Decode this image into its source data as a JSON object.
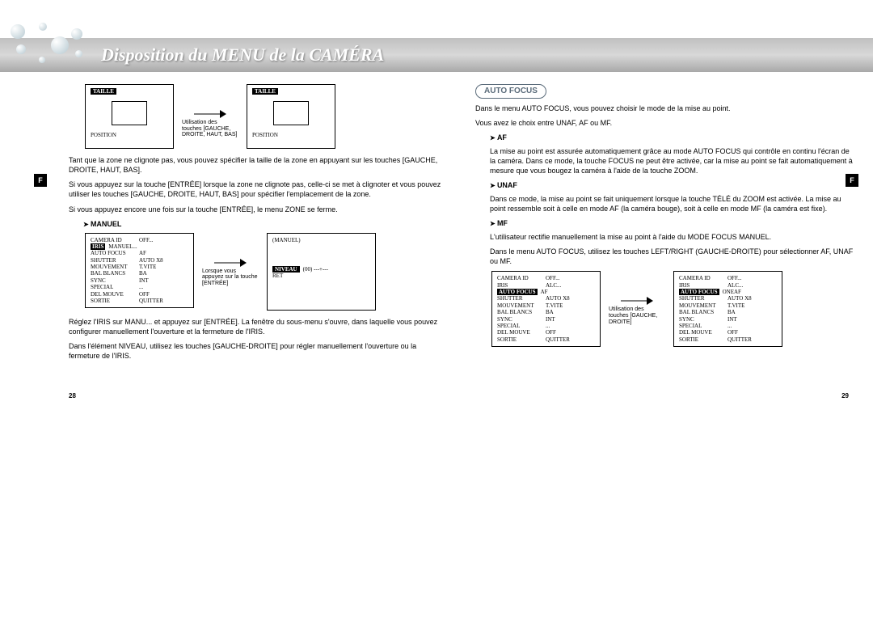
{
  "header_title": "Disposition du MENU de la CAMÉRA",
  "side_tab": "F",
  "page_num_left": "28",
  "page_num_right": "29",
  "left": {
    "taille_label": "TAILLE",
    "position_label": "POSITION",
    "arrow_note1": "Utilisation des touches [GAUCHE, DROITE, HAUT, BAS]",
    "para1": "Tant que la zone ne clignote pas, vous pouvez spécifier la taille de la zone en appuyant sur les touches [GAUCHE, DROITE, HAUT, BAS].",
    "para2": "Si vous appuyez sur la touche [ENTRÉE] lorsque la zone ne clignote pas, celle-ci se met à clignoter et vous pouvez utiliser les touches [GAUCHE, DROITE, HAUT, BAS] pour spécifier l'emplacement de la zone.",
    "para3": "Si vous appuyez encore une fois sur la touche [ENTRÉE], le menu ZONE se ferme.",
    "manuel_head": "MANUEL",
    "menu1": {
      "rows": [
        [
          "CAMERA ID",
          "OFF..."
        ],
        [
          "IRIS",
          "MANUEL..."
        ],
        [
          "AUTO FOCUS",
          "AF"
        ],
        [
          "SHUTTER",
          "AUTO X8"
        ],
        [
          "MOUVEMENT",
          "T.VITE"
        ],
        [
          "BAL BLANCS",
          "BA"
        ],
        [
          "SYNC",
          "INT"
        ],
        [
          "SPECIAL",
          "..."
        ],
        [
          "DEL MOUVE",
          "OFF"
        ],
        [
          "SORTIE",
          "QUITTER"
        ]
      ],
      "highlight_row": 1
    },
    "arrow_note2": "Lorsque vous appuyez sur la touche [ENTRÉE]",
    "menu2_title": "(MANUEL)",
    "menu2_niveau_label": "NIVEAU",
    "menu2_niveau_val": "(00) ---+---",
    "menu2_ret": "RET",
    "para4": "Réglez l'IRIS sur MANU... et appuyez sur [ENTRÉE]. La fenêtre du sous-menu s'ouvre, dans laquelle vous pouvez configurer manuellement l'ouverture et la fermeture de l'IRIS.",
    "para5": "Dans l'élément NIVEAU, utilisez les touches [GAUCHE-DROITE] pour régler manuellement l'ouverture ou la fermeture de l'IRIS."
  },
  "right": {
    "badge": "AUTO FOCUS",
    "intro1": "Dans le menu AUTO FOCUS, vous pouvez choisir le mode de la mise au point.",
    "intro2": "Vous avez le choix entre UNAF, AF ou MF.",
    "af_head": "AF",
    "af_body": "La mise au point est assurée automatiquement grâce au mode AUTO FOCUS qui contrôle en continu l'écran de la caméra. Dans ce mode, la touche FOCUS ne peut être activée, car la mise au point se fait automatiquement à mesure que vous bougez la caméra à l'aide de la touche ZOOM.",
    "unaf_head": "UNAF",
    "unaf_body": "Dans ce mode, la mise au point se fait uniquement lorsque la touche TÉLÉ du ZOOM est activée. La mise au point ressemble soit à celle en mode AF (la caméra bouge), soit à celle en mode MF (la caméra est fixe).",
    "mf_head": "MF",
    "mf_body1": "L'utilisateur rectifie manuellement la mise au point à l'aide du MODE FOCUS MANUEL.",
    "mf_body2": "Dans le menu AUTO FOCUS, utilisez les touches LEFT/RIGHT (GAUCHE-DROITE) pour sélectionner AF, UNAF ou MF.",
    "menuA": {
      "rows": [
        [
          "CAMERA ID",
          "OFF..."
        ],
        [
          "IRIS",
          "ALC..."
        ],
        [
          "AUTO FOCUS",
          "AF"
        ],
        [
          "SHUTTER",
          "AUTO X8"
        ],
        [
          "MOUVEMENT",
          "T.VITE"
        ],
        [
          "BAL BLANCS",
          "BA"
        ],
        [
          "SYNC",
          "INT"
        ],
        [
          "SPECIAL",
          "..."
        ],
        [
          "DEL MOUVE",
          "OFF"
        ],
        [
          "SORTIE",
          "QUITTER"
        ]
      ],
      "highlight_row": 2
    },
    "arrow_noteR": "Utilisation des touches [GAUCHE, DROITE]",
    "menuB": {
      "rows": [
        [
          "CAMERA ID",
          "OFF..."
        ],
        [
          "IRIS",
          "ALC..."
        ],
        [
          "AUTO FOCUS",
          "ONEAF"
        ],
        [
          "SHUTTER",
          "AUTO X8"
        ],
        [
          "MOUVEMENT",
          "T.VITE"
        ],
        [
          "BAL BLANCS",
          "BA"
        ],
        [
          "SYNC",
          "INT"
        ],
        [
          "SPECIAL",
          "..."
        ],
        [
          "DEL MOUVE",
          "OFF"
        ],
        [
          "SORTIE",
          "QUITTER"
        ]
      ],
      "highlight_row": 2
    }
  }
}
